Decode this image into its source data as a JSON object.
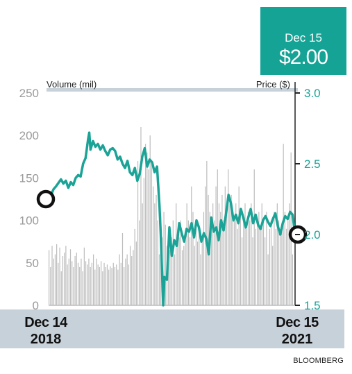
{
  "callout": {
    "date": "Dec 15",
    "price": "$2.00"
  },
  "source": "BLOOMBERG",
  "colors": {
    "price_line": "#1aa396",
    "volume_bar": "#bdbdbd",
    "band": "#c7d1d9",
    "callout_bg": "#15a396"
  },
  "chart_data": {
    "type": "line",
    "left_axis": {
      "label": "Volume (mil)",
      "range": [
        0,
        250
      ],
      "ticks": [
        "0",
        "50",
        "100",
        "150",
        "200",
        "250"
      ]
    },
    "right_axis": {
      "label": "Price ($)",
      "range": [
        1.5,
        3.0
      ],
      "ticks": [
        "1.5",
        "2.0",
        "2.5",
        "3.0"
      ]
    },
    "x_labels": [
      {
        "line1": "Dec 14",
        "line2": "2018"
      },
      {
        "line1": "Dec 15",
        "line2": "2021"
      }
    ],
    "x_range": [
      0,
      1
    ],
    "series": [
      {
        "type": "line",
        "axis": "right",
        "x": [
          0,
          0.01,
          0.02,
          0.03,
          0.05,
          0.06,
          0.07,
          0.08,
          0.09,
          0.1,
          0.11,
          0.12,
          0.13,
          0.14,
          0.15,
          0.16,
          0.165,
          0.17,
          0.18,
          0.19,
          0.2,
          0.21,
          0.22,
          0.23,
          0.24,
          0.25,
          0.26,
          0.27,
          0.28,
          0.29,
          0.3,
          0.31,
          0.32,
          0.33,
          0.34,
          0.35,
          0.36,
          0.37,
          0.38,
          0.39,
          0.4,
          0.41,
          0.42,
          0.43,
          0.44,
          0.45,
          0.455,
          0.46,
          0.465,
          0.47,
          0.48,
          0.49,
          0.5,
          0.51,
          0.52,
          0.53,
          0.54,
          0.55,
          0.56,
          0.57,
          0.58,
          0.59,
          0.6,
          0.61,
          0.62,
          0.63,
          0.64,
          0.65,
          0.66,
          0.67,
          0.68,
          0.69,
          0.7,
          0.71,
          0.72,
          0.73,
          0.74,
          0.75,
          0.76,
          0.77,
          0.78,
          0.79,
          0.8,
          0.81,
          0.82,
          0.83,
          0.84,
          0.85,
          0.86,
          0.87,
          0.88,
          0.89,
          0.9,
          0.91,
          0.92,
          0.93,
          0.94,
          0.95,
          0.96,
          0.97,
          0.98,
          0.99,
          1.0
        ],
        "values": [
          2.25,
          2.28,
          2.32,
          2.34,
          2.39,
          2.36,
          2.38,
          2.33,
          2.37,
          2.35,
          2.4,
          2.42,
          2.41,
          2.5,
          2.54,
          2.67,
          2.72,
          2.6,
          2.66,
          2.62,
          2.64,
          2.6,
          2.63,
          2.59,
          2.56,
          2.6,
          2.61,
          2.59,
          2.53,
          2.55,
          2.5,
          2.47,
          2.52,
          2.44,
          2.42,
          2.47,
          2.38,
          2.43,
          2.55,
          2.61,
          2.48,
          2.53,
          2.51,
          2.44,
          2.48,
          2.2,
          2.0,
          1.75,
          1.5,
          1.7,
          1.68,
          2.05,
          1.85,
          1.96,
          1.92,
          2.08,
          2.01,
          1.95,
          2.04,
          2.02,
          2.08,
          1.98,
          2.1,
          2.05,
          1.95,
          2.01,
          1.97,
          1.86,
          2.12,
          2.02,
          2.05,
          1.96,
          2.1,
          2.03,
          2.15,
          2.28,
          2.22,
          2.1,
          2.14,
          2.08,
          2.18,
          2.12,
          2.05,
          2.12,
          2.18,
          2.08,
          2.14,
          2.07,
          2.04,
          2.1,
          2.13,
          2.09,
          2.06,
          2.11,
          2.15,
          2.06,
          2.0,
          2.08,
          2.13,
          2.11,
          2.16,
          2.14,
          2.0
        ],
        "markers": [
          {
            "x": 0,
            "value": 2.25
          },
          {
            "x": 1.0,
            "value": 2.0
          }
        ]
      },
      {
        "type": "bar",
        "axis": "left",
        "values": [
          65,
          45,
          70,
          55,
          60,
          72,
          50,
          68,
          40,
          58,
          62,
          70,
          48,
          55,
          66,
          52,
          45,
          58,
          62,
          50,
          45,
          55,
          40,
          68,
          52,
          48,
          55,
          45,
          50,
          60,
          42,
          55,
          48,
          45,
          52,
          40,
          50,
          45,
          48,
          42,
          46,
          44,
          50,
          45,
          48,
          42,
          60,
          50,
          85,
          45,
          55,
          60,
          48,
          70,
          58,
          65,
          90,
          75,
          170,
          100,
          210,
          120,
          150,
          190,
          180,
          160,
          200,
          170,
          140,
          120,
          130,
          100,
          60,
          105,
          80,
          110,
          95,
          70,
          55,
          65,
          80,
          100,
          60,
          120,
          90,
          80,
          100,
          65,
          70,
          85,
          120,
          100,
          80,
          140,
          110,
          70,
          100,
          75,
          90,
          60,
          80,
          110,
          140,
          170,
          130,
          110,
          90,
          120,
          100,
          140,
          160,
          120,
          110,
          130,
          100,
          140,
          110,
          160,
          120,
          130,
          110,
          100,
          120,
          90,
          140,
          110,
          80,
          100,
          120,
          90,
          110,
          100,
          120,
          80,
          160,
          90,
          100,
          110,
          90,
          120,
          100,
          80,
          110,
          60,
          90,
          100,
          70,
          110,
          90,
          120,
          100,
          85,
          95,
          190,
          110,
          90,
          100,
          120,
          180,
          60
        ]
      }
    ]
  }
}
